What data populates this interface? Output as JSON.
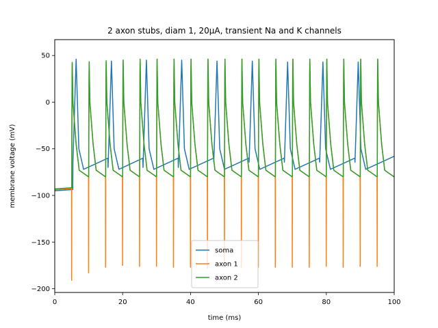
{
  "chart_data": {
    "type": "line",
    "title": "2 axon stubs, diam 1, 20μA, transient Na and K channels",
    "xlabel": "time (ms)",
    "ylabel": "membrane voltage (mV)",
    "xlim": [
      0,
      100
    ],
    "ylim": [
      -204,
      67
    ],
    "xticks": [
      0,
      20,
      40,
      60,
      80,
      100
    ],
    "yticks": [
      -200,
      -150,
      -100,
      -50,
      0,
      50
    ],
    "grid": false,
    "legend_position": "lower-center",
    "series": [
      {
        "name": "soma",
        "color": "#1f77b4",
        "spike_times": [
          5.3,
          15.7,
          26.0,
          36.4,
          46.8,
          57.2,
          67.6,
          78.0,
          88.4
        ],
        "spike_peaks": [
          46,
          44,
          45,
          45,
          44,
          44,
          43,
          43,
          43
        ],
        "resting": -95
      },
      {
        "name": "axon 1",
        "color": "#ff7f0e",
        "spike_times": [
          5.0,
          10.0,
          15.0,
          20.0,
          25.0,
          30.0,
          35.0,
          40.0,
          45.0,
          50.0,
          55.0,
          60.0,
          65.0,
          70.0,
          75.0,
          80.0,
          85.0,
          90.0,
          95.0
        ],
        "spike_peaks": [
          48,
          48,
          49,
          51,
          53,
          53,
          53,
          53,
          53,
          53,
          53,
          53,
          53,
          53,
          53,
          53,
          53,
          53,
          53
        ],
        "spike_troughs": [
          -191,
          -183,
          -177,
          -175,
          -176,
          -176,
          -177,
          -177,
          -178,
          -176,
          -177,
          -177,
          -177,
          -177,
          -177,
          -176,
          -177,
          -176,
          -176
        ],
        "resting": -94
      },
      {
        "name": "axon 2",
        "color": "#2ca02c",
        "spike_times": [
          5.0,
          10.0,
          15.0,
          20.0,
          25.0,
          30.0,
          35.0,
          40.0,
          45.0,
          50.0,
          55.0,
          60.0,
          65.0,
          70.0,
          75.0,
          80.0,
          85.0,
          90.0,
          95.0
        ],
        "spike_peaks": [
          49,
          50,
          51,
          52,
          53,
          53,
          53,
          53,
          53,
          53,
          53,
          53,
          53,
          53,
          53,
          53,
          53,
          53,
          53
        ],
        "resting": -93
      }
    ]
  }
}
